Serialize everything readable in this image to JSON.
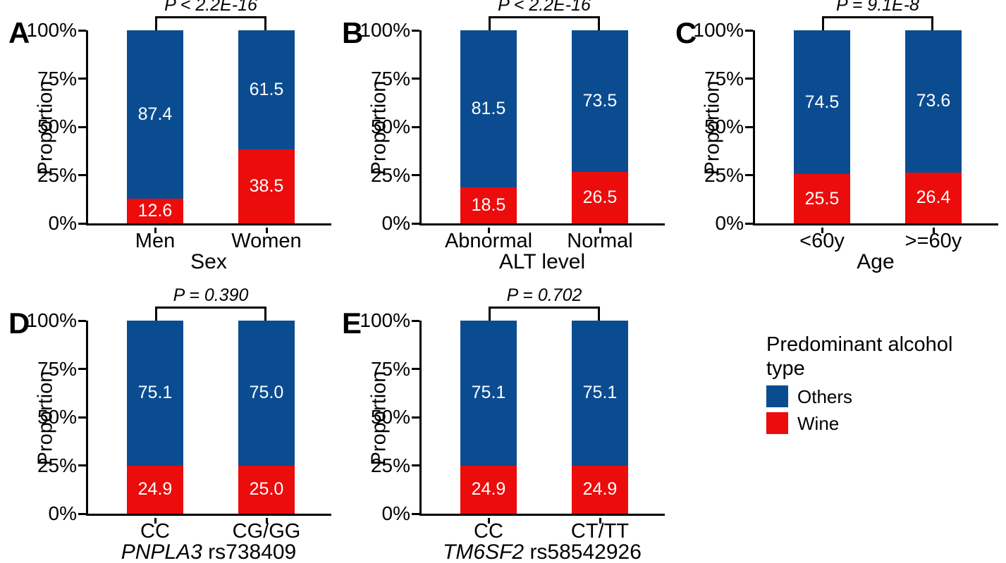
{
  "figure": {
    "background": "#ffffff"
  },
  "colors": {
    "others_blue": "#0B4C91",
    "wine_red": "#EC0C0C",
    "axis": "#000000",
    "bar_label_text": "#ffffff"
  },
  "axis": {
    "ylabel": "Proportion",
    "ylim": [
      0,
      100
    ],
    "yticks": [
      {
        "label": "0%",
        "value": 0
      },
      {
        "label": "25%",
        "value": 25
      },
      {
        "label": "50%",
        "value": 50
      },
      {
        "label": "75%",
        "value": 75
      },
      {
        "label": "100%",
        "value": 100
      }
    ]
  },
  "chart_data": [
    {
      "type": "bar",
      "stacked": true,
      "panel_label": "A",
      "p_label": "P < 2.2E-16",
      "categories": [
        "Men",
        "Women"
      ],
      "series": [
        {
          "name": "Others",
          "values": [
            87.4,
            61.5
          ]
        },
        {
          "name": "Wine",
          "values": [
            12.6,
            38.5
          ]
        }
      ],
      "xlabel_italic": "",
      "xlabel": "Sex",
      "ylabel": "Proportion",
      "ylim": [
        0,
        100
      ]
    },
    {
      "type": "bar",
      "stacked": true,
      "panel_label": "B",
      "p_label": "P < 2.2E-16",
      "categories": [
        "Abnormal",
        "Normal"
      ],
      "series": [
        {
          "name": "Others",
          "values": [
            81.5,
            73.5
          ]
        },
        {
          "name": "Wine",
          "values": [
            18.5,
            26.5
          ]
        }
      ],
      "xlabel_italic": "",
      "xlabel": "ALT level",
      "ylabel": "Proportion",
      "ylim": [
        0,
        100
      ]
    },
    {
      "type": "bar",
      "stacked": true,
      "panel_label": "C",
      "p_label": "P = 9.1E-8",
      "categories": [
        "<60y",
        ">=60y"
      ],
      "series": [
        {
          "name": "Others",
          "values": [
            74.5,
            73.6
          ]
        },
        {
          "name": "Wine",
          "values": [
            25.5,
            26.4
          ]
        }
      ],
      "xlabel_italic": "",
      "xlabel": "Age",
      "ylabel": "Proportion",
      "ylim": [
        0,
        100
      ]
    },
    {
      "type": "bar",
      "stacked": true,
      "panel_label": "D",
      "p_label": "P = 0.390",
      "categories": [
        "CC",
        "CG/GG"
      ],
      "series": [
        {
          "name": "Others",
          "values": [
            75.1,
            75.0
          ]
        },
        {
          "name": "Wine",
          "values": [
            24.9,
            25.0
          ]
        }
      ],
      "xlabel_italic": "PNPLA3",
      "xlabel": " rs738409",
      "ylabel": "Proportion",
      "ylim": [
        0,
        100
      ]
    },
    {
      "type": "bar",
      "stacked": true,
      "panel_label": "E",
      "p_label": "P = 0.702",
      "categories": [
        "CC",
        "CT/TT"
      ],
      "series": [
        {
          "name": "Others",
          "values": [
            75.1,
            75.1
          ]
        },
        {
          "name": "Wine",
          "values": [
            24.9,
            24.9
          ]
        }
      ],
      "xlabel_italic": "TM6SF2",
      "xlabel": " rs58542926",
      "ylabel": "Proportion",
      "ylim": [
        0,
        100
      ]
    }
  ],
  "legend": {
    "title": "Predominant alcohol type",
    "items": [
      {
        "label": "Others",
        "color": "#0B4C91"
      },
      {
        "label": "Wine",
        "color": "#EC0C0C"
      }
    ]
  }
}
